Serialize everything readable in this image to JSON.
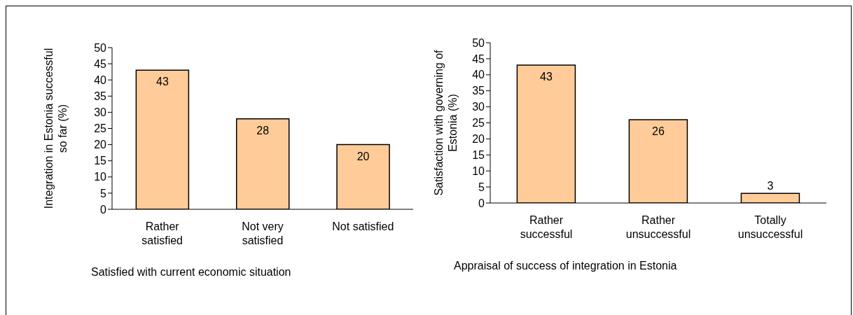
{
  "chart_data": [
    {
      "type": "bar",
      "categories": [
        "Rather satisfied",
        "Not very satisfied",
        "Not satisfied"
      ],
      "values": [
        43,
        28,
        20
      ],
      "color": "#ffcc99",
      "ylim": [
        0,
        50
      ],
      "yticks": [
        0,
        5,
        10,
        15,
        20,
        25,
        30,
        35,
        40,
        45,
        50
      ],
      "ylabel": "Integration in Estonia successful so far (%)",
      "xlabel": "Satisfied with current economic situation",
      "data_labels": true,
      "grid": false,
      "legend": false
    },
    {
      "type": "bar",
      "categories": [
        "Rather successful",
        "Rather unsuccessful",
        "Totally unsuccessful"
      ],
      "values": [
        43,
        26,
        3
      ],
      "color": "#ffcc99",
      "ylim": [
        0,
        50
      ],
      "yticks": [
        0,
        5,
        10,
        15,
        20,
        25,
        30,
        35,
        40,
        45,
        50
      ],
      "ylabel": "Satisfaction with governing of Estonia (%)",
      "xlabel": "Appraisal of success of integration in Estonia",
      "data_labels": true,
      "grid": false,
      "legend": false
    }
  ]
}
